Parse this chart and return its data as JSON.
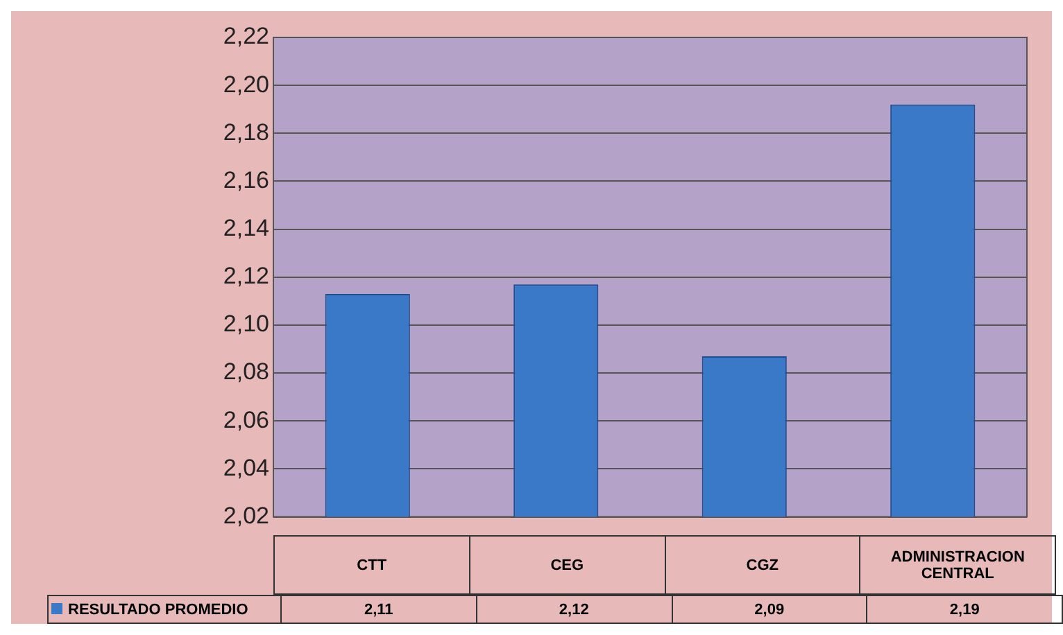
{
  "chart_data": {
    "type": "bar",
    "categories": [
      "CTT",
      "CEG",
      "CGZ",
      "ADMINISTRACION CENTRAL"
    ],
    "series": [
      {
        "name": "RESULTADO PROMEDIO",
        "color": "#3a78c8",
        "values": [
          2.113,
          2.117,
          2.087,
          2.192
        ],
        "value_labels": [
          "2,11",
          "2,12",
          "2,09",
          "2,19"
        ]
      }
    ],
    "ylim": [
      2.02,
      2.22
    ],
    "yticks": [
      {
        "value": 2.02,
        "label": "2,02"
      },
      {
        "value": 2.04,
        "label": "2,04"
      },
      {
        "value": 2.06,
        "label": "2,06"
      },
      {
        "value": 2.08,
        "label": "2,08"
      },
      {
        "value": 2.1,
        "label": "2,10"
      },
      {
        "value": 2.12,
        "label": "2,12"
      },
      {
        "value": 2.14,
        "label": "2,14"
      },
      {
        "value": 2.16,
        "label": "2,16"
      },
      {
        "value": 2.18,
        "label": "2,18"
      },
      {
        "value": 2.2,
        "label": "2,20"
      },
      {
        "value": 2.22,
        "label": "2,22"
      }
    ],
    "grid": "y",
    "legend": "bottom left"
  }
}
